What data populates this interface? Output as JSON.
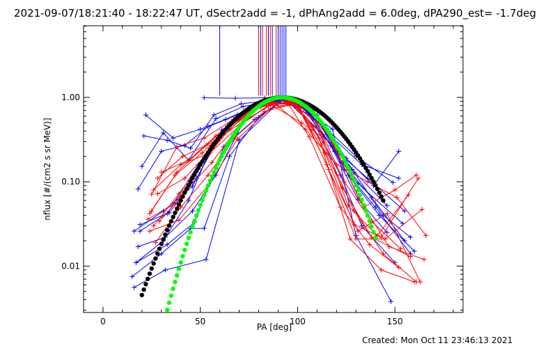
{
  "chart_data": {
    "type": "scatter",
    "title": "2021-09-07/18:21:40 - 18:22:47 UT, dSectr2add = -1, dPhAng2add = 6.0deg, dPA290_est= -1.7deg",
    "xlabel": "PA [deg]",
    "ylabel": "nflux [#/(cm2 s sr MeV)]",
    "footer": "Created: Mon Oct 11 23:46:13 2021",
    "xlim": [
      -10,
      185
    ],
    "ylim_log10": [
      -2.55,
      0.85
    ],
    "yscale": "log",
    "grid": false,
    "legend": "none",
    "x_ticks": [
      0,
      50,
      100,
      150
    ],
    "x_tick_labels": [
      "0",
      "50",
      "100",
      "150"
    ],
    "y_ticks": [
      0.01,
      0.1,
      1.0
    ],
    "y_tick_labels": [
      "0.01",
      "0.10",
      "1.00"
    ],
    "colors": {
      "blue": "#0000ff",
      "red": "#ff0000",
      "black": "#000000",
      "green": "#00ff00"
    },
    "series": [
      {
        "color": "blue",
        "marker": "plus",
        "values": [
          [
            [
              16,
              0.0056
            ],
            [
              32,
              0.009
            ],
            [
              53,
              0.012
            ],
            [
              70,
              0.31
            ],
            [
              90,
              0.86
            ],
            [
              100,
              0.82
            ],
            [
              118,
              0.42
            ],
            [
              130,
              0.023
            ],
            [
              148,
              0.0038
            ]
          ],
          [
            [
              17,
              0.011
            ],
            [
              33,
              0.018
            ],
            [
              47,
              0.033
            ],
            [
              62,
              0.26
            ],
            [
              78,
              0.55
            ],
            [
              93,
              0.95
            ],
            [
              105,
              0.72
            ],
            [
              122,
              0.12
            ],
            [
              133,
              0.03
            ],
            [
              150,
              0.011
            ]
          ],
          [
            [
              18,
              0.082
            ],
            [
              30,
              0.23
            ],
            [
              42,
              0.27
            ],
            [
              54,
              0.45
            ],
            [
              69,
              0.62
            ],
            [
              84,
              0.88
            ],
            [
              96,
              0.85
            ],
            [
              113,
              0.36
            ],
            [
              128,
              0.14
            ],
            [
              146,
              0.052
            ]
          ],
          [
            [
              19,
              0.031
            ],
            [
              34,
              0.043
            ],
            [
              48,
              0.11
            ],
            [
              60,
              0.34
            ],
            [
              75,
              0.72
            ],
            [
              90,
              0.96
            ],
            [
              106,
              0.76
            ],
            [
              121,
              0.22
            ],
            [
              136,
              0.11
            ],
            [
              155,
              0.045
            ]
          ],
          [
            [
              20,
              0.152
            ],
            [
              31,
              0.38
            ],
            [
              44,
              0.18
            ],
            [
              58,
              0.56
            ],
            [
              72,
              0.78
            ],
            [
              88,
              0.92
            ],
            [
              101,
              0.86
            ],
            [
              117,
              0.35
            ],
            [
              133,
              0.16
            ],
            [
              152,
              0.11
            ]
          ],
          [
            [
              16,
              0.026
            ],
            [
              31,
              0.045
            ],
            [
              46,
              0.088
            ],
            [
              61,
              0.41
            ],
            [
              74,
              0.66
            ],
            [
              91,
              0.97
            ],
            [
              104,
              0.78
            ],
            [
              119,
              0.23
            ],
            [
              131,
              0.095
            ],
            [
              154,
              0.032
            ]
          ],
          [
            [
              18,
              0.017
            ],
            [
              32,
              0.022
            ],
            [
              46,
              0.045
            ],
            [
              58,
              0.12
            ],
            [
              72,
              0.5
            ],
            [
              88,
              0.9
            ],
            [
              103,
              0.74
            ],
            [
              117,
              0.27
            ],
            [
              131,
              0.062
            ],
            [
              146,
              0.025
            ]
          ],
          [
            [
              21,
              0.35
            ],
            [
              33,
              0.31
            ],
            [
              45,
              0.25
            ],
            [
              57,
              0.62
            ],
            [
              71,
              0.84
            ],
            [
              87,
              0.93
            ],
            [
              99,
              0.88
            ],
            [
              116,
              0.4
            ],
            [
              130,
              0.2
            ],
            [
              149,
              0.098
            ]
          ],
          [
            [
              15,
              0.0075
            ],
            [
              30,
              0.014
            ],
            [
              45,
              0.028
            ],
            [
              52,
              0.028
            ],
            [
              65,
              0.2
            ],
            [
              80,
              0.58
            ],
            [
              94,
              0.97
            ],
            [
              108,
              0.7
            ],
            [
              124,
              0.14
            ],
            [
              140,
              0.05
            ],
            [
              158,
              0.014
            ]
          ],
          [
            [
              19,
              0.026
            ],
            [
              33,
              0.042
            ],
            [
              49,
              0.16
            ],
            [
              64,
              0.46
            ],
            [
              77,
              0.74
            ],
            [
              92,
              0.95
            ],
            [
              107,
              0.6
            ],
            [
              123,
              0.17
            ],
            [
              138,
              0.065
            ],
            [
              155,
              0.02
            ]
          ],
          [
            [
              52,
              0.99
            ],
            [
              68,
              0.98
            ],
            [
              83,
              0.99
            ],
            [
              95,
              0.96
            ],
            [
              110,
              0.62
            ],
            [
              126,
              0.12
            ],
            [
              142,
              0.04
            ],
            [
              160,
              0.015
            ]
          ],
          [
            [
              22,
              0.62
            ],
            [
              36,
              0.33
            ],
            [
              50,
              0.42
            ],
            [
              63,
              0.55
            ],
            [
              79,
              0.8
            ],
            [
              93,
              0.96
            ],
            [
              109,
              0.62
            ],
            [
              125,
              0.19
            ],
            [
              139,
              0.09
            ],
            [
              152,
              0.23
            ]
          ],
          [
            [
              17,
              0.011
            ],
            [
              31,
              0.02
            ],
            [
              44,
              0.06
            ],
            [
              56,
              0.27
            ],
            [
              70,
              0.6
            ],
            [
              85,
              0.9
            ],
            [
              99,
              0.9
            ],
            [
              114,
              0.42
            ],
            [
              129,
              0.13
            ],
            [
              144,
              0.04
            ],
            [
              158,
              0.022
            ]
          ]
        ]
      },
      {
        "color": "red",
        "marker": "plus",
        "values": [
          [
            [
              24,
              0.042
            ],
            [
              37,
              0.12
            ],
            [
              51,
              0.22
            ],
            [
              66,
              0.48
            ],
            [
              81,
              0.77
            ],
            [
              96,
              0.9
            ],
            [
              110,
              0.5
            ],
            [
              124,
              0.1
            ],
            [
              138,
              0.034
            ],
            [
              153,
              0.016
            ]
          ],
          [
            [
              25,
              0.071
            ],
            [
              38,
              0.26
            ],
            [
              52,
              0.33
            ],
            [
              67,
              0.55
            ],
            [
              82,
              0.82
            ],
            [
              97,
              0.88
            ],
            [
              112,
              0.38
            ],
            [
              126,
              0.052
            ],
            [
              141,
              0.023
            ],
            [
              157,
              0.07
            ]
          ],
          [
            [
              27,
              0.019
            ],
            [
              40,
              0.05
            ],
            [
              54,
              0.12
            ],
            [
              68,
              0.34
            ],
            [
              83,
              0.68
            ],
            [
              98,
              0.84
            ],
            [
              111,
              0.33
            ],
            [
              127,
              0.021
            ],
            [
              143,
              0.009
            ],
            [
              160,
              0.0065
            ]
          ],
          [
            [
              26,
              0.03
            ],
            [
              39,
              0.072
            ],
            [
              53,
              0.2
            ],
            [
              66,
              0.5
            ],
            [
              80,
              0.8
            ],
            [
              95,
              0.93
            ],
            [
              108,
              0.45
            ],
            [
              123,
              0.085
            ],
            [
              138,
              0.022
            ],
            [
              158,
              0.013
            ]
          ],
          [
            [
              28,
              0.072
            ],
            [
              42,
              0.11
            ],
            [
              56,
              0.25
            ],
            [
              70,
              0.54
            ],
            [
              84,
              0.86
            ],
            [
              99,
              0.85
            ],
            [
              113,
              0.29
            ],
            [
              129,
              0.045
            ],
            [
              144,
              0.014
            ],
            [
              161,
              0.0065
            ]
          ],
          [
            [
              25,
              0.045
            ],
            [
              38,
              0.13
            ],
            [
              53,
              0.27
            ],
            [
              69,
              0.58
            ],
            [
              84,
              0.84
            ],
            [
              99,
              0.83
            ],
            [
              114,
              0.22
            ],
            [
              129,
              0.031
            ],
            [
              143,
              0.022
            ],
            [
              162,
              0.11
            ]
          ],
          [
            [
              29,
              0.034
            ],
            [
              43,
              0.08
            ],
            [
              56,
              0.17
            ],
            [
              70,
              0.46
            ],
            [
              85,
              0.8
            ],
            [
              100,
              0.8
            ],
            [
              115,
              0.16
            ],
            [
              130,
              0.021
            ],
            [
              145,
              0.021
            ],
            [
              164,
              0.047
            ]
          ],
          [
            [
              23,
              0.036
            ],
            [
              37,
              0.055
            ],
            [
              50,
              0.16
            ],
            [
              65,
              0.42
            ],
            [
              79,
              0.78
            ],
            [
              94,
              0.93
            ],
            [
              106,
              0.34
            ],
            [
              122,
              0.05
            ],
            [
              137,
              0.018
            ],
            [
              152,
              0.0096
            ]
          ],
          [
            [
              30,
              0.13
            ],
            [
              44,
              0.18
            ],
            [
              58,
              0.35
            ],
            [
              73,
              0.62
            ],
            [
              87,
              0.88
            ],
            [
              101,
              0.78
            ],
            [
              116,
              0.14
            ],
            [
              131,
              0.026
            ],
            [
              146,
              0.042
            ],
            [
              163,
              0.0065
            ]
          ],
          [
            [
              24,
              0.026
            ],
            [
              39,
              0.035
            ],
            [
              54,
              0.09
            ],
            [
              69,
              0.32
            ],
            [
              86,
              0.74
            ],
            [
              100,
              0.86
            ],
            [
              117,
              0.33
            ],
            [
              132,
              0.06
            ],
            [
              147,
              0.017
            ],
            [
              165,
              0.012
            ]
          ],
          [
            [
              28,
              0.11
            ],
            [
              41,
              0.2
            ],
            [
              57,
              0.3
            ],
            [
              72,
              0.52
            ],
            [
              88,
              0.86
            ],
            [
              104,
              0.42
            ],
            [
              120,
              0.16
            ],
            [
              136,
              0.1
            ],
            [
              151,
              0.065
            ],
            [
              166,
              0.023
            ]
          ],
          [
            [
              26,
              0.08
            ],
            [
              40,
              0.16
            ],
            [
              55,
              0.22
            ],
            [
              71,
              0.48
            ],
            [
              86,
              0.83
            ],
            [
              102,
              0.5
            ],
            [
              118,
              0.28
            ],
            [
              134,
              0.05
            ],
            [
              150,
              0.08
            ],
            [
              161,
              0.12
            ]
          ]
        ]
      },
      {
        "color": "black",
        "marker": "dot",
        "name": "",
        "model": {
          "center": 92,
          "width": 31,
          "xmin": 20,
          "xmax": 144
        }
      },
      {
        "color": "green",
        "marker": "dot",
        "name": "",
        "model": {
          "center": 92,
          "width": 24.5,
          "xmin": 20,
          "xmax": 140
        }
      }
    ],
    "sector_markers": [
      {
        "x": 60,
        "color": "blue"
      },
      {
        "x": 80,
        "color": "red"
      },
      {
        "x": 82,
        "color": "red"
      },
      {
        "x": 84,
        "color": "red"
      },
      {
        "x": 86,
        "color": "red"
      },
      {
        "x": 89,
        "color": "red"
      },
      {
        "x": 81,
        "color": "blue"
      },
      {
        "x": 85,
        "color": "blue"
      },
      {
        "x": 87,
        "color": "blue"
      },
      {
        "x": 90,
        "color": "blue"
      },
      {
        "x": 91,
        "color": "blue"
      },
      {
        "x": 92,
        "color": "blue"
      },
      {
        "x": 93,
        "color": "blue"
      },
      {
        "x": 94,
        "color": "blue"
      }
    ]
  }
}
